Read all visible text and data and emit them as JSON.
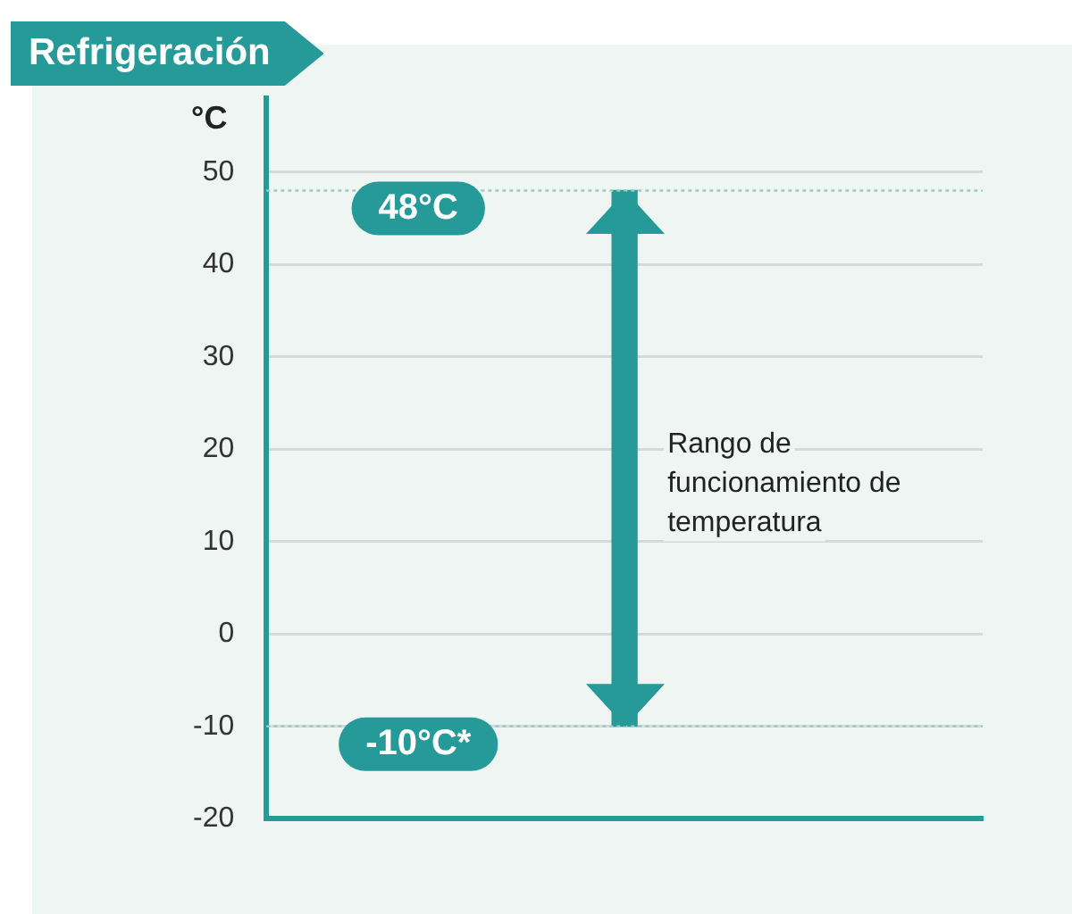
{
  "chart_data": {
    "type": "bar",
    "title": "Refrigeración",
    "ylabel": "°C",
    "categories": [
      null
    ],
    "values": [
      58
    ],
    "base": [
      -10
    ],
    "color": "#269a98",
    "ylim": [
      -20,
      58
    ],
    "yticks": [
      -20,
      -10,
      0,
      10,
      20,
      30,
      40,
      50
    ],
    "grid": "y",
    "legend": false,
    "ref_lines": [
      {
        "axis": "y",
        "value": 48,
        "label": "48°C",
        "color": "#9ccbc8",
        "line_style": "dotted"
      },
      {
        "axis": "y",
        "value": -10,
        "label": "-10°C*",
        "color": "#9ccbc8",
        "line_style": "dotted"
      }
    ],
    "annotations": [
      "Rango de funcionamiento de temperatura"
    ]
  }
}
